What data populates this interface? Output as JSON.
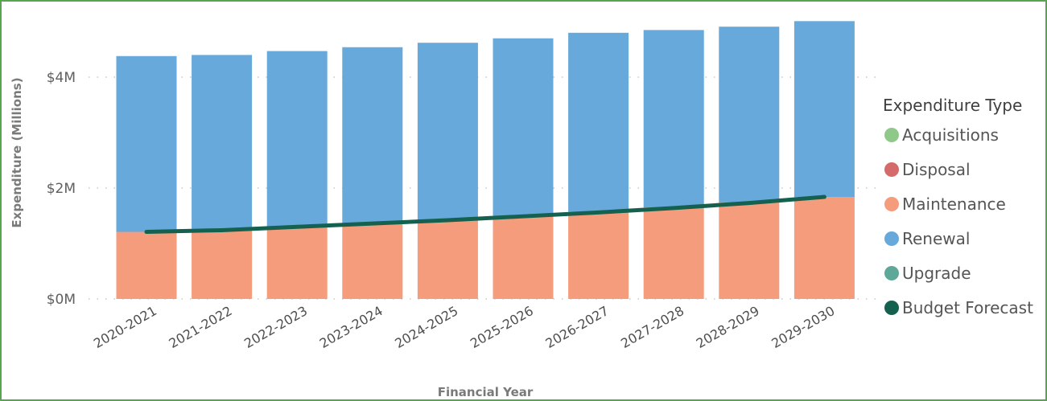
{
  "chart_data": {
    "type": "bar",
    "stacked": true,
    "categories": [
      "2020-2021",
      "2021-2022",
      "2022-2023",
      "2023-2024",
      "2024-2025",
      "2025-2026",
      "2026-2027",
      "2027-2028",
      "2028-2029",
      "2029-2030"
    ],
    "series": [
      {
        "name": "Acquisitions",
        "color": "#8fc98a",
        "values": [
          0,
          0,
          0,
          0,
          0,
          0,
          0,
          0,
          0,
          0
        ]
      },
      {
        "name": "Disposal",
        "color": "#d46a6a",
        "values": [
          0,
          0,
          0,
          0,
          0,
          0,
          0,
          0,
          0,
          0
        ]
      },
      {
        "name": "Maintenance",
        "color": "#f59c7c",
        "values": [
          1.21,
          1.26,
          1.31,
          1.36,
          1.42,
          1.5,
          1.57,
          1.65,
          1.74,
          1.84
        ]
      },
      {
        "name": "Renewal",
        "color": "#67a9db",
        "values": [
          3.17,
          3.14,
          3.16,
          3.18,
          3.2,
          3.2,
          3.23,
          3.2,
          3.17,
          3.17
        ]
      },
      {
        "name": "Upgrade",
        "color": "#5ea89a",
        "values": [
          0,
          0,
          0,
          0,
          0,
          0,
          0,
          0,
          0,
          0
        ]
      }
    ],
    "line": {
      "name": "Budget Forecast",
      "color": "#14614f",
      "values": [
        1.21,
        1.24,
        1.3,
        1.36,
        1.42,
        1.49,
        1.56,
        1.64,
        1.73,
        1.84
      ]
    },
    "xlabel": "Financial Year",
    "ylabel": "Expenditure (Millions)",
    "ylim": [
      0,
      5
    ],
    "yticks": [
      0,
      2,
      4
    ],
    "ytick_labels": [
      "$0M",
      "$2M",
      "$4M"
    ],
    "grid": "horizontal dotted",
    "legend": {
      "title": "Expenditure Type",
      "placement": "right",
      "entries": [
        "Acquisitions",
        "Disposal",
        "Maintenance",
        "Renewal",
        "Upgrade",
        "Budget Forecast"
      ]
    }
  }
}
